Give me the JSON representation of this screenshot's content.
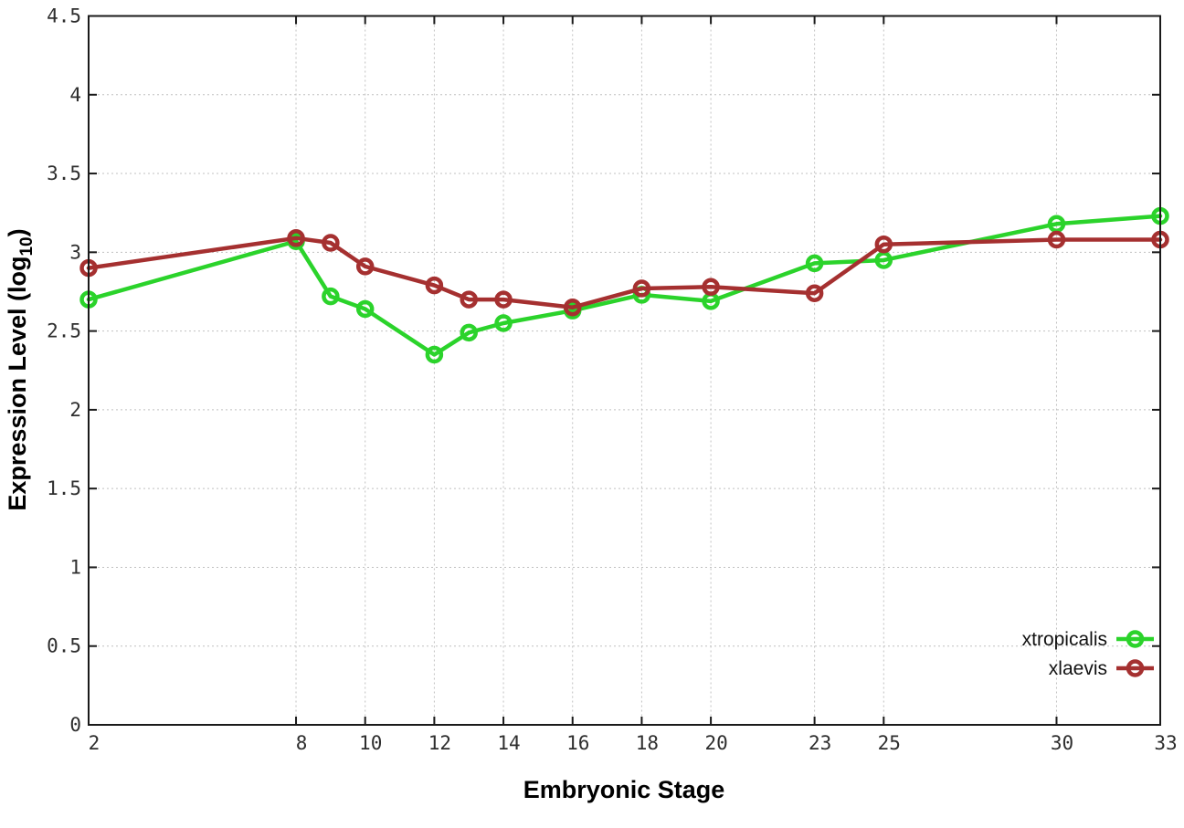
{
  "figure": {
    "background": "#ffffff",
    "border_color": "#1a1a1a",
    "grid_color": "#c0c0c0"
  },
  "chart_data": {
    "type": "line",
    "title": "",
    "xlabel": "Embryonic Stage",
    "ylabel": "Expression Level (log10)",
    "ylabel_parts": {
      "main": "Expression Level (log",
      "sub": "10",
      "end": ")"
    },
    "xlim": [
      2,
      33
    ],
    "ylim": [
      0,
      4.5
    ],
    "x_ticks": [
      2,
      8,
      10,
      12,
      14,
      16,
      18,
      20,
      23,
      25,
      30,
      33
    ],
    "x_tick_labels": [
      "2",
      "8",
      "10",
      "12",
      "14",
      "16",
      "18",
      "20",
      "23",
      "25",
      "30",
      "33"
    ],
    "y_ticks": [
      0,
      0.5,
      1,
      1.5,
      2,
      2.5,
      3,
      3.5,
      4,
      4.5
    ],
    "y_tick_labels": [
      "0",
      "0.5",
      "1",
      "1.5",
      "2",
      "2.5",
      "3",
      "3.5",
      "4",
      "4.5"
    ],
    "grid": true,
    "legend_position": "bottom-right",
    "x": [
      2,
      8,
      9,
      10,
      12,
      13,
      14,
      16,
      18,
      20,
      23,
      25,
      30,
      33
    ],
    "series": [
      {
        "name": "xtropicalis",
        "color": "#2bd32b",
        "marker": "open-circle",
        "values": [
          2.7,
          3.07,
          2.72,
          2.64,
          2.35,
          2.49,
          2.55,
          2.63,
          2.73,
          2.69,
          2.93,
          2.95,
          3.18,
          3.23
        ]
      },
      {
        "name": "xlaevis",
        "color": "#a53030",
        "marker": "open-circle",
        "values": [
          2.9,
          3.09,
          3.06,
          2.91,
          2.79,
          2.7,
          2.7,
          2.65,
          2.77,
          2.78,
          2.74,
          3.05,
          3.08,
          3.08
        ]
      }
    ]
  }
}
